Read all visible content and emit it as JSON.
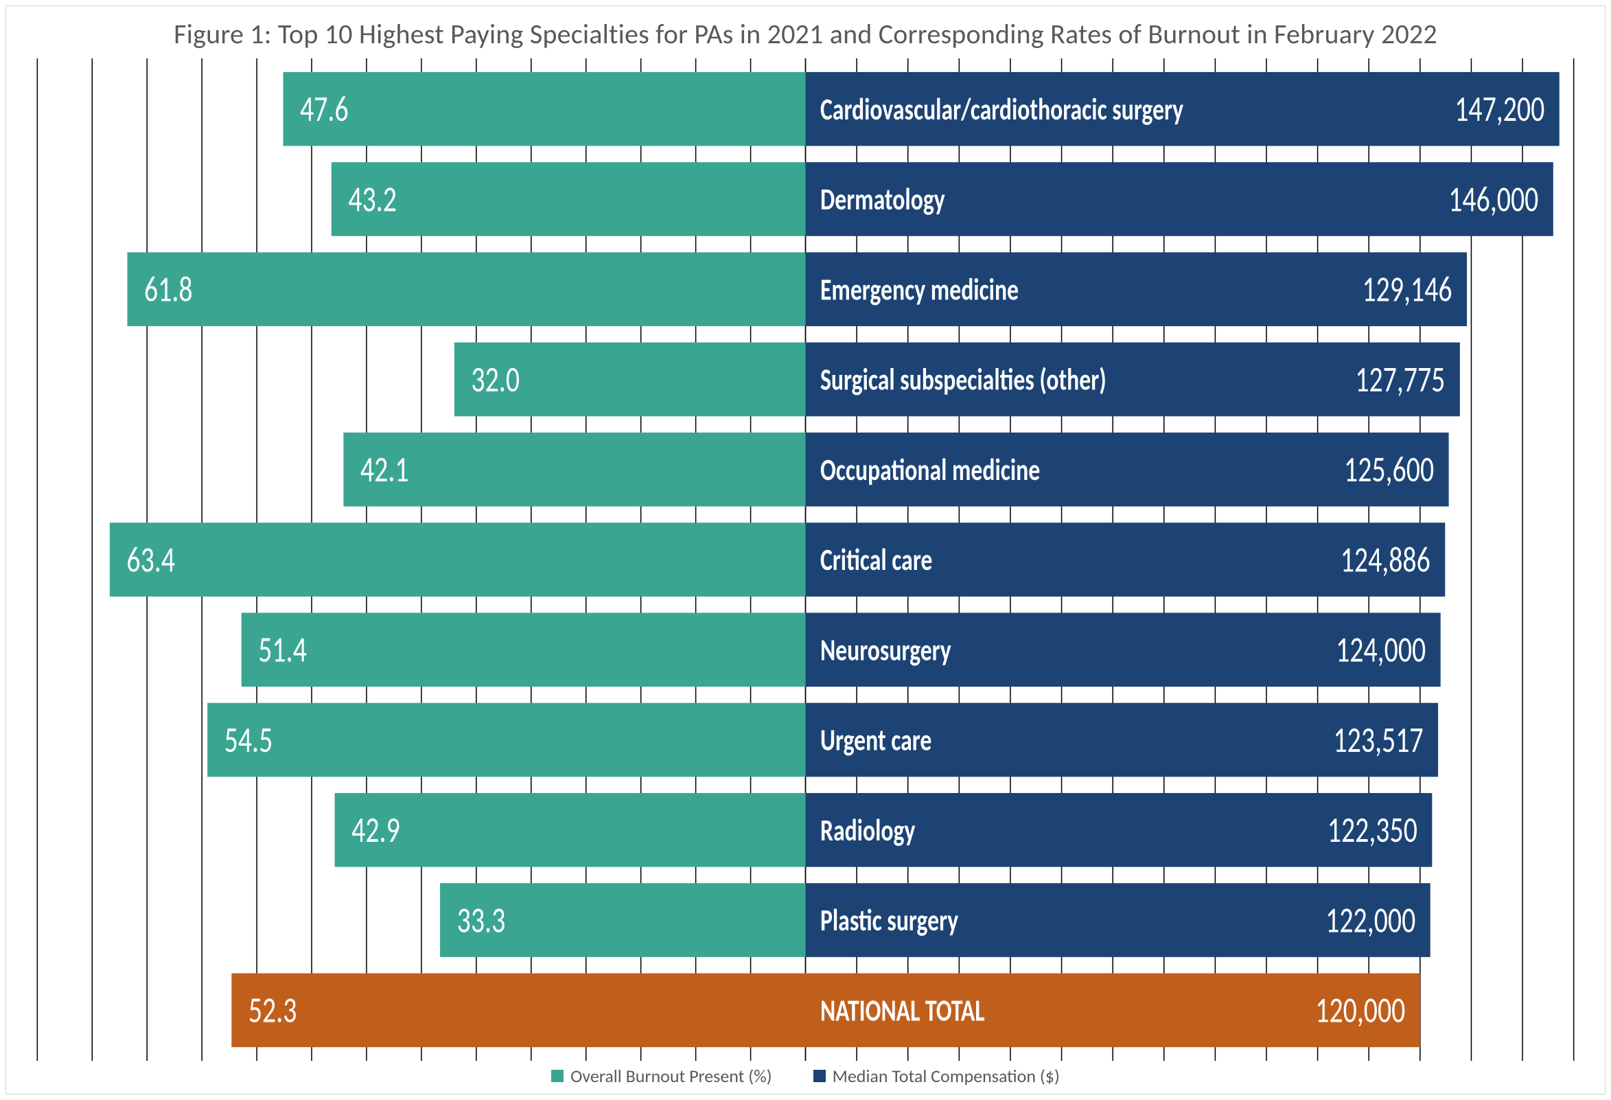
{
  "chart": {
    "type": "diverging-bar",
    "title": "Figure 1: Top 10 Highest Paying Specialties for PAs in 2021 and Corresponding Rates of Burnout in February 2022",
    "title_fontsize": 40,
    "title_color": "#595959",
    "background_color": "#ffffff",
    "border_color": "#d0d0d0",
    "grid_color": "#000000",
    "colors": {
      "burnout": "#3aa692",
      "compensation": "#1c4373",
      "national_left": "#c05f1c",
      "national_right": "#c05f1c"
    },
    "left_axis": {
      "label_text": "Overall Burnout Present (%)",
      "min": 0,
      "max": 70,
      "tick_step": 5
    },
    "right_axis": {
      "label_text": "Median Total Compensation ($)",
      "min": 0,
      "max": 150000,
      "tick_step": 10000
    },
    "bar_gap_ratio": 0.18,
    "label_fontsize_cat": 22,
    "label_fontsize_val": 26,
    "legend_fontsize": 26,
    "rows": [
      {
        "category": "Cardiovascular/cardiothoracic surgery",
        "burnout": 47.6,
        "compensation": 147200,
        "comp_display": "147,200",
        "is_national": false
      },
      {
        "category": "Dermatology",
        "burnout": 43.2,
        "compensation": 146000,
        "comp_display": "146,000",
        "is_national": false
      },
      {
        "category": "Emergency medicine",
        "burnout": 61.8,
        "compensation": 129146,
        "comp_display": "129,146",
        "is_national": false
      },
      {
        "category": "Surgical subspecialties (other)",
        "burnout": 32.0,
        "compensation": 127775,
        "comp_display": "127,775",
        "is_national": false
      },
      {
        "category": "Occupational medicine",
        "burnout": 42.1,
        "compensation": 125600,
        "comp_display": "125,600",
        "is_national": false
      },
      {
        "category": "Critical care",
        "burnout": 63.4,
        "compensation": 124886,
        "comp_display": "124,886",
        "is_national": false
      },
      {
        "category": "Neurosurgery",
        "burnout": 51.4,
        "compensation": 124000,
        "comp_display": "124,000",
        "is_national": false
      },
      {
        "category": "Urgent care",
        "burnout": 54.5,
        "compensation": 123517,
        "comp_display": "123,517",
        "is_national": false
      },
      {
        "category": "Radiology",
        "burnout": 42.9,
        "compensation": 122350,
        "comp_display": "122,350",
        "is_national": false
      },
      {
        "category": "Plastic surgery",
        "burnout": 33.3,
        "compensation": 122000,
        "comp_display": "122,000",
        "is_national": false
      },
      {
        "category": "NATIONAL TOTAL",
        "burnout": 52.3,
        "compensation": 120000,
        "comp_display": "120,000",
        "is_national": true
      }
    ],
    "legend": [
      {
        "label": "Overall Burnout Present (%)",
        "color": "#3aa692"
      },
      {
        "label": "Median Total Compensation ($)",
        "color": "#1c4373"
      }
    ]
  }
}
